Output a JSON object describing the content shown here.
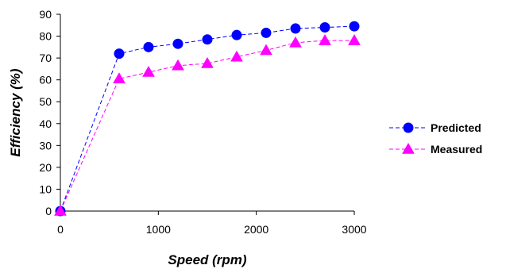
{
  "chart_data": {
    "type": "line",
    "title": "",
    "xlabel": "Speed (rpm)",
    "ylabel": "Efficiency (%)",
    "xlim": [
      0,
      3000
    ],
    "ylim": [
      0,
      90
    ],
    "xticks": [
      0,
      1000,
      2000,
      3000
    ],
    "yticks": [
      0,
      10,
      20,
      30,
      40,
      50,
      60,
      70,
      80,
      90
    ],
    "grid": false,
    "legend_position": "right",
    "series": [
      {
        "name": "Predicted",
        "color": "#0000FF",
        "marker": "circle",
        "line_style": "dashed",
        "x": [
          0,
          600,
          900,
          1200,
          1500,
          1800,
          2100,
          2400,
          2700,
          3000
        ],
        "y": [
          0,
          72,
          75,
          76.5,
          78.5,
          80.5,
          81.5,
          83.5,
          84,
          84.5
        ]
      },
      {
        "name": "Measured",
        "color": "#FF00FF",
        "marker": "triangle",
        "line_style": "dashed",
        "x": [
          0,
          600,
          900,
          1200,
          1500,
          1800,
          2100,
          2400,
          2700,
          3000
        ],
        "y": [
          0,
          60.5,
          63.5,
          66.5,
          67.5,
          70.5,
          73.5,
          77,
          78,
          78
        ]
      }
    ]
  }
}
